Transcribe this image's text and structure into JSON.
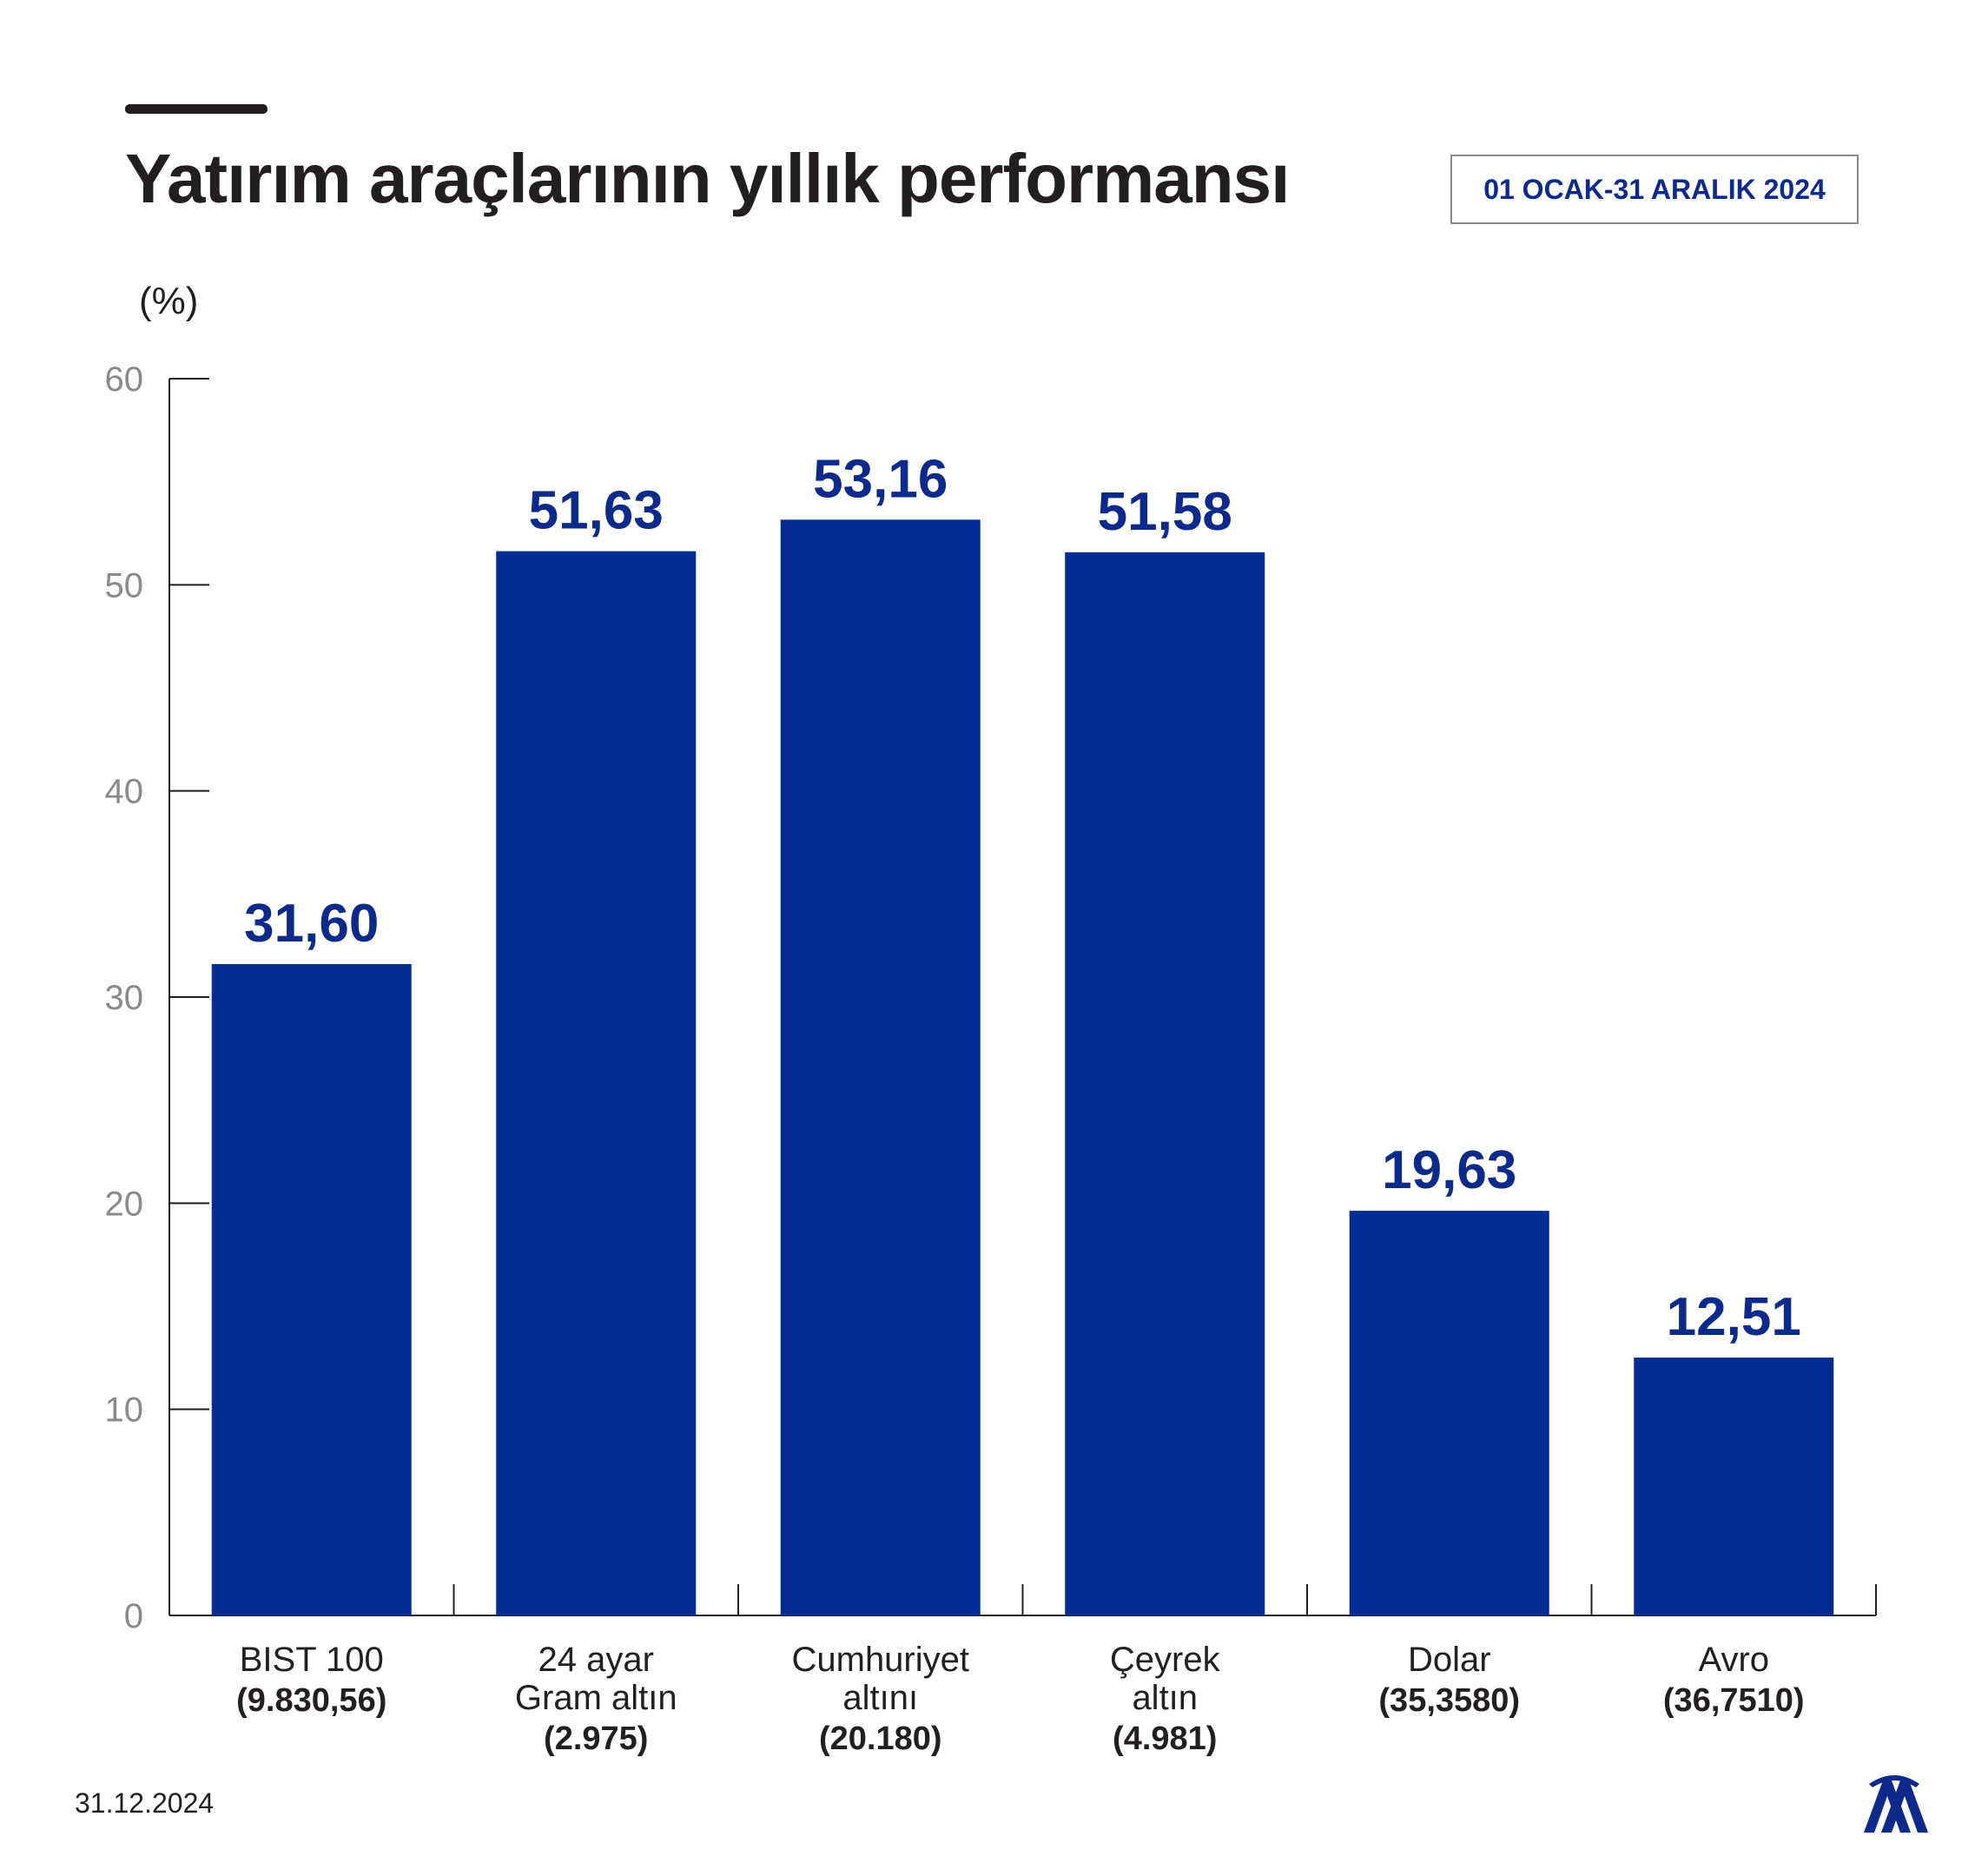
{
  "header": {
    "title": "Yatırım araçlarının yıllık performansı",
    "date_range": "01 OCAK-31 ARALIK 2024"
  },
  "footer": {
    "date": "31.12.2024",
    "logo_icon": "aa-logo-icon"
  },
  "colors": {
    "bar": "#022c91",
    "value_label": "#0b2a8a",
    "axis": "#231f20",
    "tick_label": "#8a8a8a"
  },
  "chart_data": {
    "type": "bar",
    "ylabel": "(%)",
    "ylim": [
      0,
      60
    ],
    "yticks": [
      0,
      10,
      20,
      30,
      40,
      50,
      60
    ],
    "grid": false,
    "categories": [
      {
        "lines": [
          "BIST 100"
        ],
        "note": "(9.830,56)"
      },
      {
        "lines": [
          "24 ayar",
          "Gram altın"
        ],
        "note": "(2.975)"
      },
      {
        "lines": [
          "Cumhuriyet",
          "altını"
        ],
        "note": "(20.180)"
      },
      {
        "lines": [
          "Çeyrek",
          "altın"
        ],
        "note": "(4.981)"
      },
      {
        "lines": [
          "Dolar"
        ],
        "note": "(35,3580)"
      },
      {
        "lines": [
          "Avro"
        ],
        "note": "(36,7510)"
      }
    ],
    "values": [
      31.6,
      51.63,
      53.16,
      51.58,
      19.63,
      12.51
    ],
    "value_labels": [
      "31,60",
      "51,63",
      "53,16",
      "51,58",
      "19,63",
      "12,51"
    ]
  }
}
